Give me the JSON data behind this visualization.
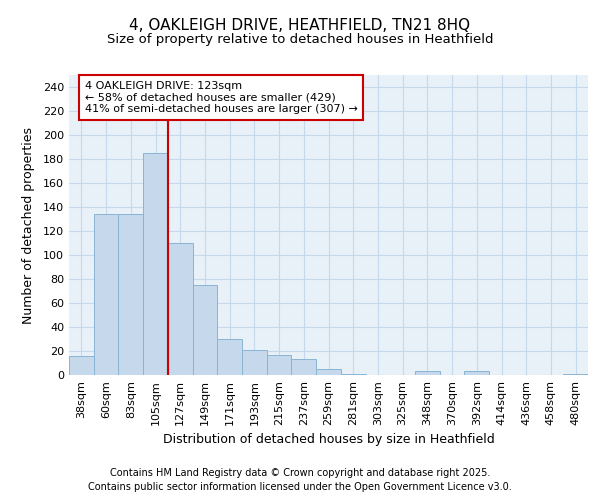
{
  "title_line1": "4, OAKLEIGH DRIVE, HEATHFIELD, TN21 8HQ",
  "title_line2": "Size of property relative to detached houses in Heathfield",
  "xlabel": "Distribution of detached houses by size in Heathfield",
  "ylabel": "Number of detached properties",
  "categories": [
    "38sqm",
    "60sqm",
    "83sqm",
    "105sqm",
    "127sqm",
    "149sqm",
    "171sqm",
    "193sqm",
    "215sqm",
    "237sqm",
    "259sqm",
    "281sqm",
    "303sqm",
    "325sqm",
    "348sqm",
    "370sqm",
    "392sqm",
    "414sqm",
    "436sqm",
    "458sqm",
    "480sqm"
  ],
  "values": [
    16,
    134,
    134,
    185,
    110,
    75,
    30,
    21,
    17,
    13,
    5,
    1,
    0,
    0,
    3,
    0,
    3,
    0,
    0,
    0,
    1
  ],
  "bar_color": "#c5d8ec",
  "bar_edge_color": "#8ab4d4",
  "grid_color": "#c5d8ec",
  "bg_color": "#e8f0f8",
  "vline_x_index": 4,
  "vline_color": "#cc0000",
  "annotation_line1": "4 OAKLEIGH DRIVE: 123sqm",
  "annotation_line2": "← 58% of detached houses are smaller (429)",
  "annotation_line3": "41% of semi-detached houses are larger (307) →",
  "annotation_box_color": "#ffffff",
  "annotation_box_edge_color": "#cc0000",
  "footer_line1": "Contains HM Land Registry data © Crown copyright and database right 2025.",
  "footer_line2": "Contains public sector information licensed under the Open Government Licence v3.0.",
  "ylim": [
    0,
    250
  ],
  "yticks": [
    0,
    20,
    40,
    60,
    80,
    100,
    120,
    140,
    160,
    180,
    200,
    220,
    240
  ],
  "title_fontsize": 11,
  "subtitle_fontsize": 9.5,
  "axis_label_fontsize": 9,
  "tick_fontsize": 8,
  "annotation_fontsize": 8,
  "footer_fontsize": 7
}
